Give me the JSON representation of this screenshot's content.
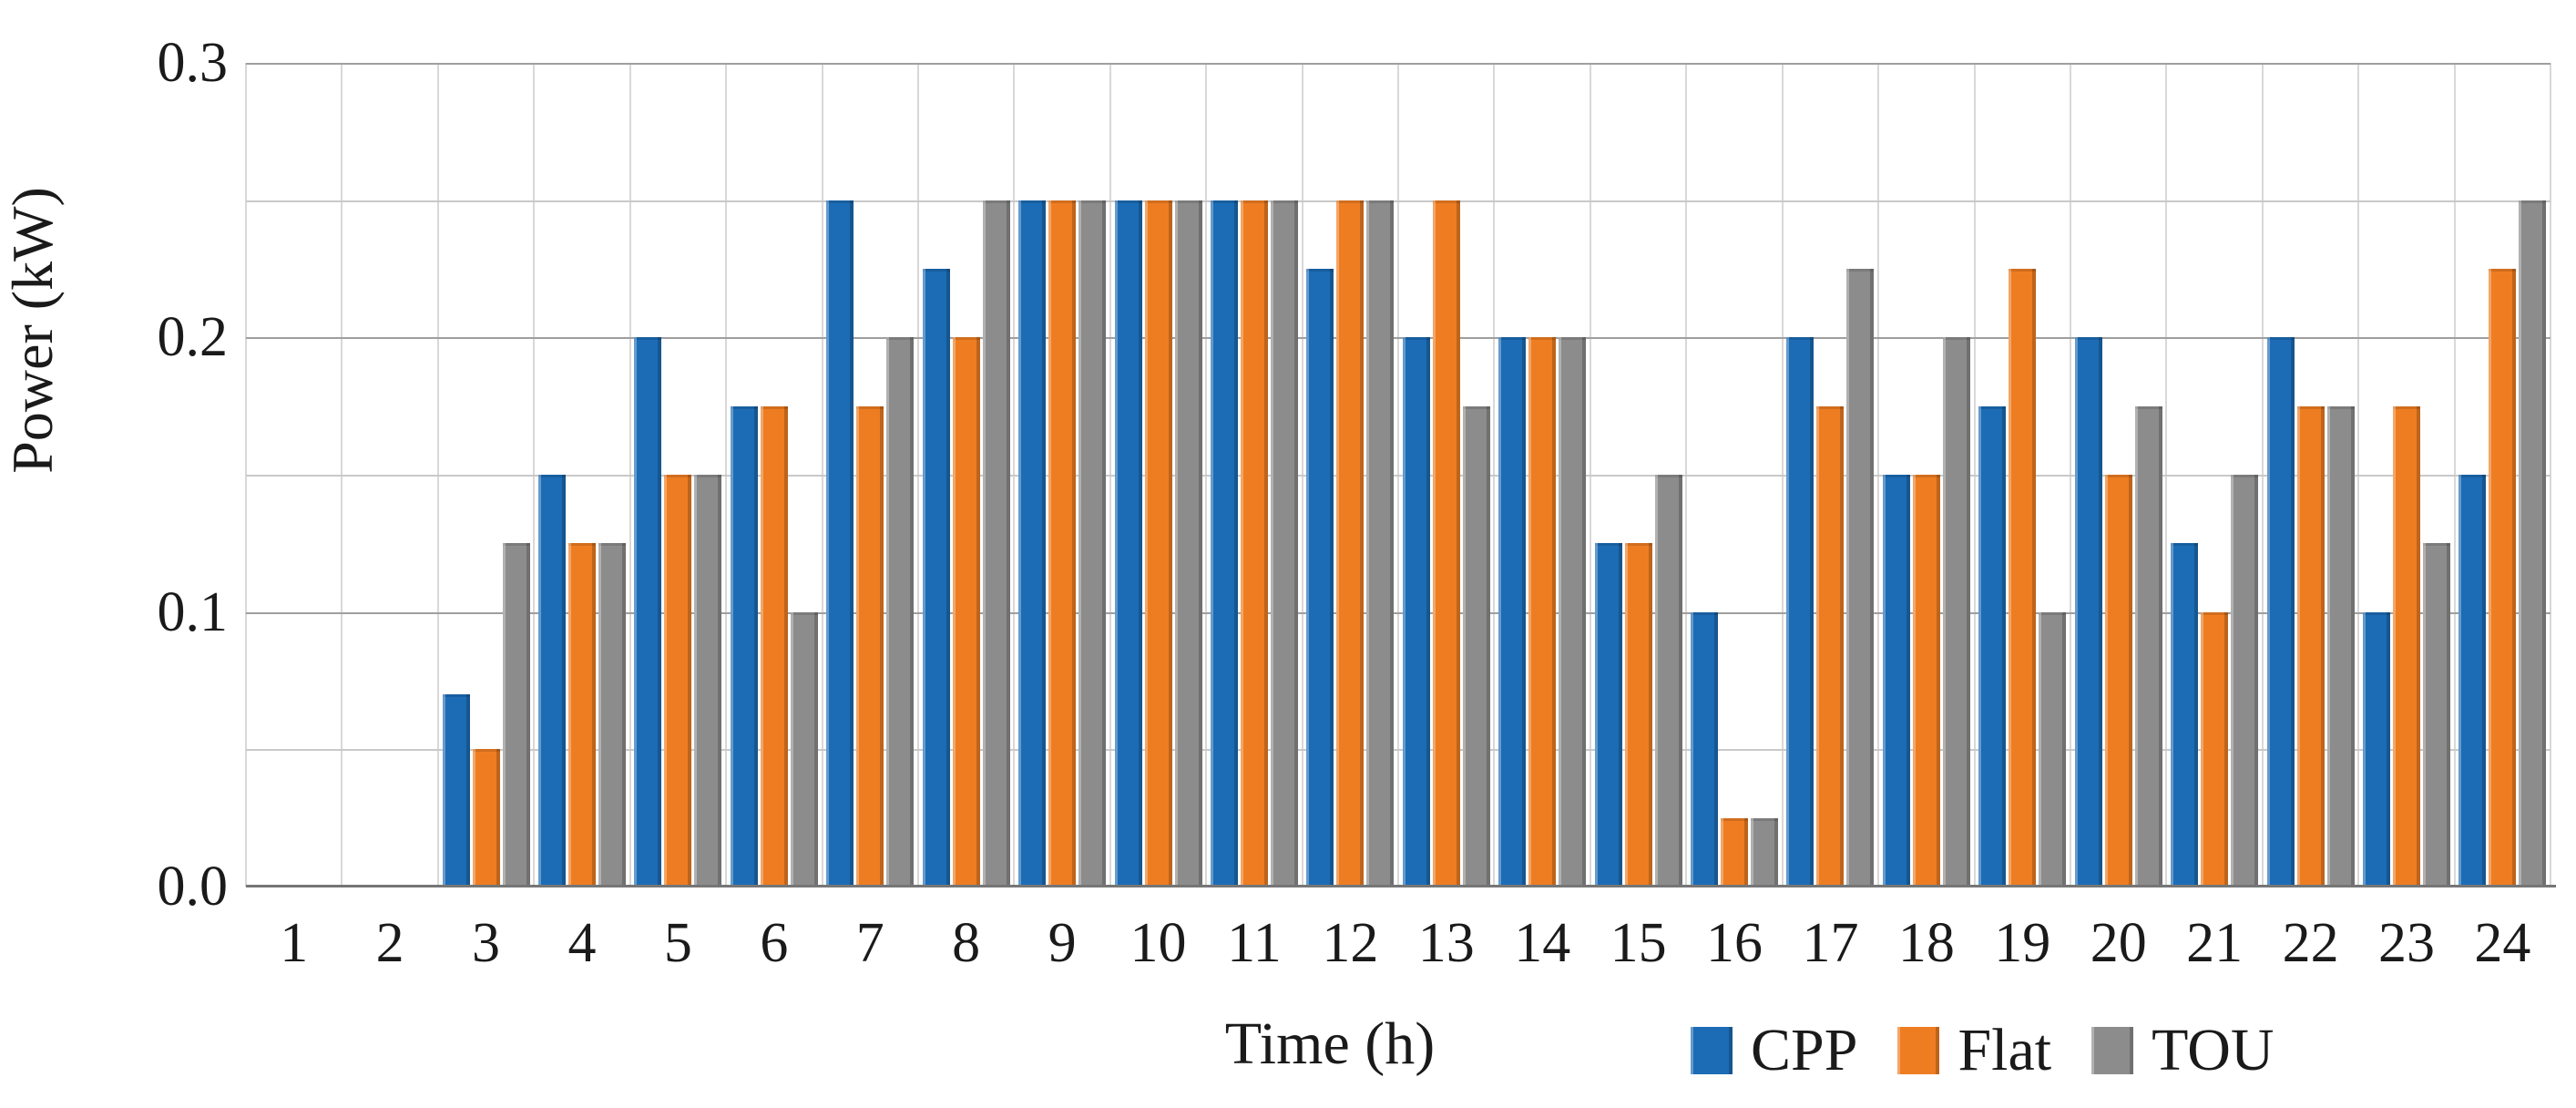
{
  "chart_data": {
    "type": "bar",
    "title": "",
    "xlabel": "Time (h)",
    "ylabel": "Power (kW)",
    "ylim": [
      0,
      0.3
    ],
    "gridline_step": 0.05,
    "ytick_labels": [
      "0.3",
      "0.2",
      "0.1",
      "0.0"
    ],
    "legend_position": "bottom-right",
    "grid": true,
    "categories": [
      "1",
      "2",
      "3",
      "4",
      "5",
      "6",
      "7",
      "8",
      "9",
      "10",
      "11",
      "12",
      "13",
      "14",
      "15",
      "16",
      "17",
      "18",
      "19",
      "20",
      "21",
      "22",
      "23",
      "24"
    ],
    "series": [
      {
        "name": "CPP",
        "color": "#1c6cb5",
        "values": [
          0,
          0,
          0.07,
          0.15,
          0.2,
          0.175,
          0.25,
          0.225,
          0.25,
          0.25,
          0.25,
          0.225,
          0.2,
          0.2,
          0.125,
          0.1,
          0.2,
          0.15,
          0.175,
          0.2,
          0.125,
          0.2,
          0.1,
          0.15
        ]
      },
      {
        "name": "Flat",
        "color": "#ee7d22",
        "values": [
          0,
          0,
          0.05,
          0.125,
          0.15,
          0.175,
          0.175,
          0.2,
          0.25,
          0.25,
          0.25,
          0.25,
          0.25,
          0.2,
          0.125,
          0.025,
          0.175,
          0.15,
          0.225,
          0.15,
          0.1,
          0.175,
          0.175,
          0.225
        ]
      },
      {
        "name": "TOU",
        "color": "#8c8c8c",
        "values": [
          0,
          0,
          0.125,
          0.125,
          0.15,
          0.1,
          0.2,
          0.25,
          0.25,
          0.25,
          0.25,
          0.25,
          0.175,
          0.2,
          0.15,
          0.025,
          0.225,
          0.2,
          0.1,
          0.175,
          0.15,
          0.175,
          0.125,
          0.25
        ]
      }
    ]
  }
}
